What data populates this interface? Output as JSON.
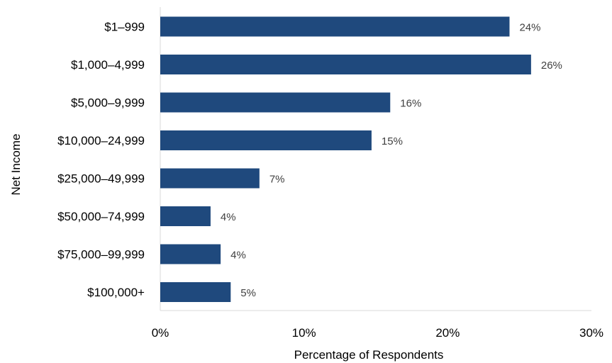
{
  "chart_data": {
    "type": "bar",
    "orientation": "horizontal",
    "categories": [
      "$1–999",
      "$1,000–4,999",
      "$5,000–9,999",
      "$10,000–24,999",
      "$25,000–49,999",
      "$50,000–74,999",
      "$75,000–99,999",
      "$100,000+"
    ],
    "values": [
      24.3,
      25.8,
      16.0,
      14.7,
      6.9,
      3.5,
      4.2,
      4.9
    ],
    "data_labels": [
      "24%",
      "26%",
      "16%",
      "15%",
      "7%",
      "4%",
      "4%",
      "5%"
    ],
    "xlabel": "Percentage of Respondents",
    "ylabel": "Net Income",
    "xlim": [
      0,
      30
    ],
    "x_ticks": [
      0,
      10,
      20,
      30
    ],
    "x_tick_labels": [
      "0%",
      "10%",
      "20%",
      "30%"
    ],
    "grid": false,
    "legend": "none",
    "bar_color": "#1f497d"
  }
}
